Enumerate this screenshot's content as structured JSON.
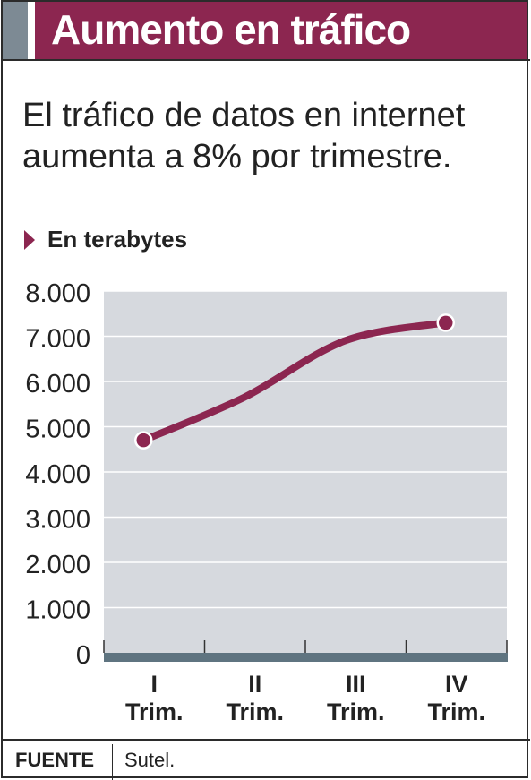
{
  "header": {
    "title": "Aumento en tráfico"
  },
  "subtitle": "El tráfico de datos en internet aumenta a 8% por trimestre.",
  "unit_label": "En terabytes",
  "chart_data": {
    "type": "line",
    "title": "Aumento en tráfico",
    "subtitle": "El tráfico de datos en internet aumenta a 8% por trimestre.",
    "ylabel": "En terabytes",
    "categories": [
      {
        "top": "I",
        "bottom": "Trim."
      },
      {
        "top": "II",
        "bottom": "Trim."
      },
      {
        "top": "III",
        "bottom": "Trim."
      },
      {
        "top": "IV",
        "bottom": "Trim."
      }
    ],
    "series": [
      {
        "values": [
          4700,
          5650,
          6900,
          7300
        ]
      }
    ],
    "yticks": [
      "0",
      "1.000",
      "2.000",
      "3.000",
      "4.000",
      "5.000",
      "6.000",
      "7.000",
      "8.000"
    ],
    "ylim": [
      0,
      8000
    ],
    "grid": true,
    "legend": "none"
  },
  "footer": {
    "source_key": "FUENTE",
    "source_value": "Sutel."
  },
  "colors": {
    "accent": "#8c2650",
    "band_gray": "#7d8a94",
    "plot_bg": "#d6d9de",
    "baseline": "#5f7480"
  }
}
